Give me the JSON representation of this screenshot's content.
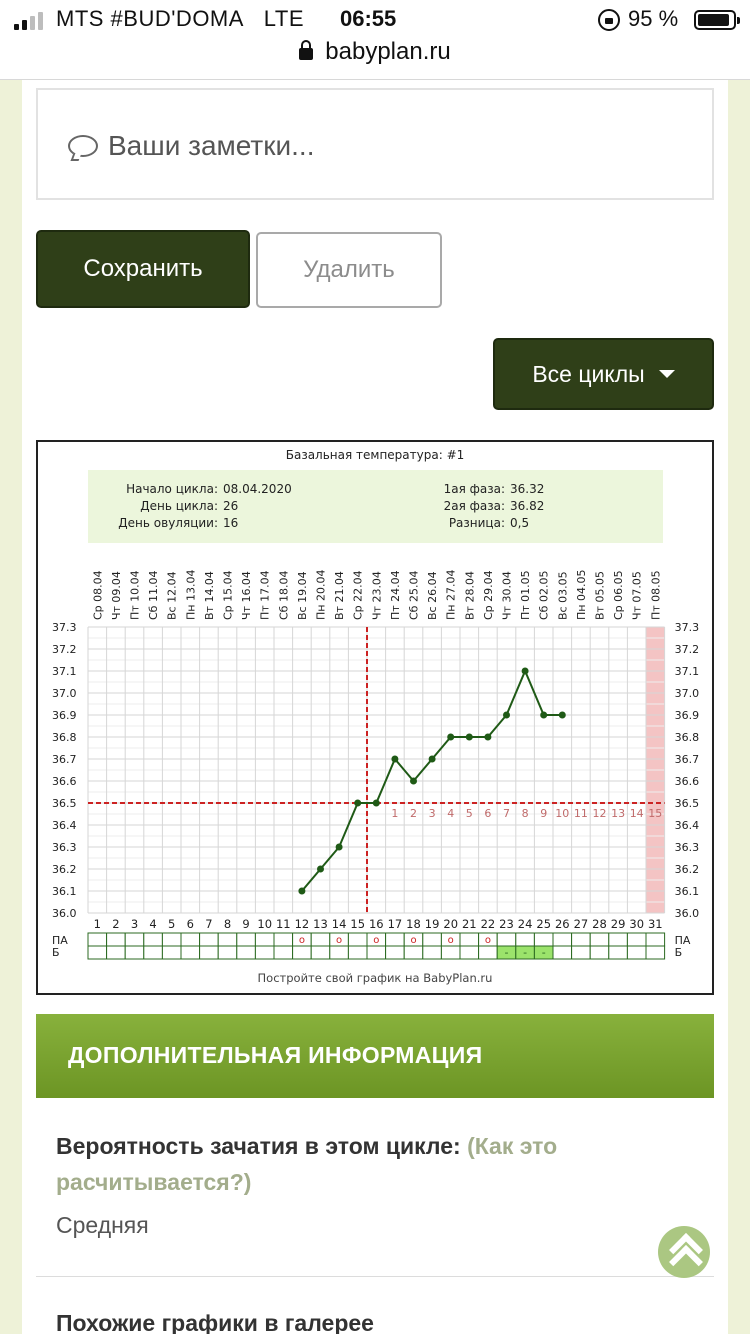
{
  "status_bar": {
    "carrier": "MTS #BUD'DOMA",
    "network": "LTE",
    "time": "06:55",
    "battery": "95 %",
    "url": "babyplan.ru"
  },
  "notes": {
    "placeholder": "Ваши заметки..."
  },
  "buttons": {
    "save": "Сохранить",
    "delete": "Удалить",
    "all_cycles": "Все циклы"
  },
  "chart_data": {
    "type": "line",
    "title": "Базальная температура: #1",
    "info": {
      "cycle_start_label": "Начало цикла:",
      "cycle_start": "08.04.2020",
      "cycle_day_label": "День цикла:",
      "cycle_day": "26",
      "ovulation_day_label": "День овуляции:",
      "ovulation_day": "16",
      "phase1_label": "1ая фаза:",
      "phase1": "36.32",
      "phase2_label": "2ая фаза:",
      "phase2": "36.82",
      "diff_label": "Разница:",
      "diff": "0,5"
    },
    "dates": [
      "Ср 08.04",
      "Чт 09.04",
      "Пт 10.04",
      "Сб 11.04",
      "Вс 12.04",
      "Пн 13.04",
      "Вт 14.04",
      "Ср 15.04",
      "Чт 16.04",
      "Пт 17.04",
      "Сб 18.04",
      "Вс 19.04",
      "Пн 20.04",
      "Вт 21.04",
      "Ср 22.04",
      "Чт 23.04",
      "Пт 24.04",
      "Сб 25.04",
      "Вс 26.04",
      "Пн 27.04",
      "Вт 28.04",
      "Ср 29.04",
      "Чт 30.04",
      "Пт 01.05",
      "Сб 02.05",
      "Вс 03.05",
      "Пн 04.05",
      "Вт 05.05",
      "Ср 06.05",
      "Чт 07.05",
      "Пт 08.05"
    ],
    "days": [
      "1",
      "2",
      "3",
      "4",
      "5",
      "6",
      "7",
      "8",
      "9",
      "10",
      "11",
      "12",
      "13",
      "14",
      "15",
      "16",
      "17",
      "18",
      "19",
      "20",
      "21",
      "22",
      "23",
      "24",
      "25",
      "26",
      "27",
      "28",
      "29",
      "30",
      "31"
    ],
    "y_ticks": [
      "37.3",
      "37.2",
      "37.1",
      "37.0",
      "36.9",
      "36.8",
      "36.7",
      "36.6",
      "36.5",
      "36.4",
      "36.3",
      "36.2",
      "36.1",
      "36.0"
    ],
    "ylim": [
      36.0,
      37.3
    ],
    "series": [
      {
        "x": [
          12,
          13,
          14,
          15,
          16,
          17,
          18,
          19,
          20,
          21,
          22,
          23,
          24,
          25,
          26
        ],
        "y": [
          36.1,
          36.2,
          36.3,
          36.5,
          36.5,
          36.7,
          36.6,
          36.7,
          36.8,
          36.8,
          36.8,
          36.9,
          37.1,
          36.9,
          36.9
        ]
      }
    ],
    "coverline": 36.5,
    "ovulation_line_day": 16,
    "phase2_labels": [
      "1",
      "2",
      "3",
      "4",
      "5",
      "6",
      "7",
      "8",
      "9",
      "10",
      "11",
      "12",
      "13",
      "14",
      "15"
    ],
    "highlight_day": 31,
    "pa_row_label": "ПА",
    "b_row_label": "Б",
    "pa_marks_days": [
      12,
      14,
      16,
      18,
      20,
      22
    ],
    "pa_mark": "o",
    "b_marks_days": [
      23,
      24,
      25
    ],
    "b_mark": "-",
    "footer": "Постройте свой график на BabyPlan.ru",
    "colors": {
      "line": "#1f5a16",
      "coverline": "#cc2222",
      "highlight": "#f4c4c4",
      "b_cell": "#9be36b",
      "info_bg": "#ecf6dc"
    }
  },
  "info": {
    "header": "ДОПОЛНИТЕЛЬНАЯ ИНФОРМАЦИЯ",
    "probability_label": "Вероятность зачатия в этом цикле:",
    "probability_link": "(Как это расчитывается?)",
    "probability_value": "Средняя",
    "similar_title": "Похожие графики в галерее"
  }
}
